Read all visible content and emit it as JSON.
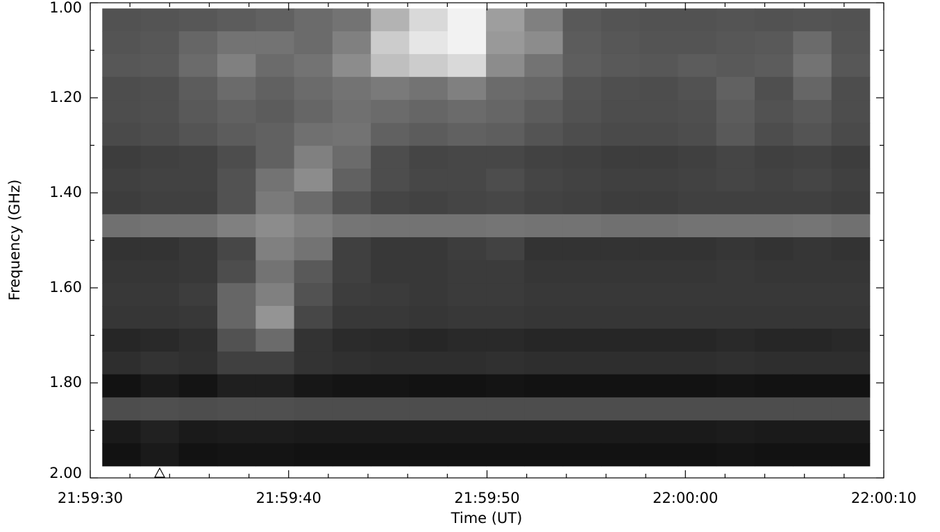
{
  "chart_data": {
    "type": "heatmap",
    "x_label": "Time (UT)",
    "y_label": "Frequency (GHz)",
    "colormap": "gray",
    "zlim": [
      0,
      1
    ],
    "xlim": [
      0,
      40
    ],
    "xticks": [
      {
        "value": 0,
        "label": "21:59:30"
      },
      {
        "value": 10,
        "label": "21:59:40"
      },
      {
        "value": 20,
        "label": "21:59:50"
      },
      {
        "value": 30,
        "label": "22:00:00"
      },
      {
        "value": 40,
        "label": "22:00:10"
      }
    ],
    "xminorticks": [
      2,
      4,
      6,
      8,
      12,
      14,
      16,
      18,
      22,
      24,
      26,
      28,
      32,
      34,
      36,
      38
    ],
    "ylim": [
      2,
      1
    ],
    "yticks": [
      {
        "value": 1,
        "label": "1.00"
      },
      {
        "value": 1.2,
        "label": "1.20"
      },
      {
        "value": 1.4,
        "label": "1.40"
      },
      {
        "value": 1.6,
        "label": "1.60"
      },
      {
        "value": 1.8,
        "label": "1.80"
      },
      {
        "value": 2,
        "label": "2.00"
      }
    ],
    "yminorticks": [
      1.1,
      1.3,
      1.5,
      1.7,
      1.9
    ],
    "marker_x": 3.5,
    "x": [
      1.57,
      3.5,
      5.44,
      7.37,
      9.31,
      11.24,
      13.18,
      15.11,
      17.05,
      18.98,
      20.92,
      22.85,
      24.79,
      26.72,
      28.66,
      30.59,
      32.53,
      34.46,
      36.4,
      38.33
    ],
    "y": [
      1.036,
      1.084,
      1.132,
      1.18,
      1.229,
      1.277,
      1.325,
      1.373,
      1.421,
      1.469,
      1.518,
      1.566,
      1.614,
      1.662,
      1.71,
      1.758,
      1.806,
      1.855,
      1.903,
      1.951
    ],
    "z": [
      [
        0.32,
        0.33,
        0.34,
        0.36,
        0.38,
        0.42,
        0.45,
        0.7,
        0.85,
        0.95,
        0.62,
        0.5,
        0.35,
        0.33,
        0.32,
        0.32,
        0.33,
        0.32,
        0.33,
        0.32
      ],
      [
        0.33,
        0.34,
        0.4,
        0.45,
        0.45,
        0.42,
        0.5,
        0.8,
        0.9,
        0.95,
        0.6,
        0.55,
        0.36,
        0.34,
        0.33,
        0.33,
        0.34,
        0.35,
        0.42,
        0.33
      ],
      [
        0.34,
        0.35,
        0.42,
        0.5,
        0.42,
        0.45,
        0.55,
        0.75,
        0.8,
        0.85,
        0.55,
        0.45,
        0.37,
        0.35,
        0.34,
        0.36,
        0.35,
        0.36,
        0.45,
        0.34
      ],
      [
        0.3,
        0.31,
        0.36,
        0.42,
        0.38,
        0.42,
        0.45,
        0.48,
        0.45,
        0.5,
        0.42,
        0.4,
        0.33,
        0.31,
        0.3,
        0.32,
        0.38,
        0.31,
        0.4,
        0.3
      ],
      [
        0.3,
        0.31,
        0.35,
        0.38,
        0.36,
        0.4,
        0.44,
        0.42,
        0.4,
        0.42,
        0.4,
        0.36,
        0.32,
        0.3,
        0.3,
        0.31,
        0.36,
        0.32,
        0.35,
        0.3
      ],
      [
        0.29,
        0.3,
        0.33,
        0.36,
        0.38,
        0.44,
        0.45,
        0.38,
        0.36,
        0.38,
        0.37,
        0.33,
        0.3,
        0.29,
        0.29,
        0.3,
        0.35,
        0.3,
        0.33,
        0.29
      ],
      [
        0.24,
        0.25,
        0.26,
        0.3,
        0.38,
        0.5,
        0.42,
        0.3,
        0.27,
        0.28,
        0.28,
        0.26,
        0.25,
        0.24,
        0.24,
        0.25,
        0.27,
        0.25,
        0.26,
        0.24
      ],
      [
        0.25,
        0.26,
        0.26,
        0.32,
        0.45,
        0.55,
        0.38,
        0.3,
        0.28,
        0.28,
        0.3,
        0.27,
        0.26,
        0.25,
        0.25,
        0.26,
        0.27,
        0.26,
        0.27,
        0.25
      ],
      [
        0.24,
        0.25,
        0.25,
        0.32,
        0.48,
        0.42,
        0.32,
        0.27,
        0.26,
        0.27,
        0.28,
        0.26,
        0.25,
        0.24,
        0.24,
        0.25,
        0.25,
        0.25,
        0.25,
        0.24
      ],
      [
        0.44,
        0.45,
        0.45,
        0.5,
        0.55,
        0.5,
        0.46,
        0.45,
        0.45,
        0.45,
        0.46,
        0.45,
        0.45,
        0.44,
        0.44,
        0.45,
        0.45,
        0.45,
        0.46,
        0.44
      ],
      [
        0.2,
        0.2,
        0.22,
        0.28,
        0.5,
        0.45,
        0.25,
        0.22,
        0.22,
        0.24,
        0.26,
        0.2,
        0.2,
        0.2,
        0.2,
        0.2,
        0.21,
        0.2,
        0.21,
        0.2
      ],
      [
        0.21,
        0.21,
        0.22,
        0.3,
        0.45,
        0.35,
        0.25,
        0.22,
        0.22,
        0.23,
        0.23,
        0.21,
        0.21,
        0.21,
        0.21,
        0.21,
        0.22,
        0.21,
        0.21,
        0.21
      ],
      [
        0.22,
        0.22,
        0.24,
        0.4,
        0.5,
        0.32,
        0.24,
        0.23,
        0.22,
        0.23,
        0.23,
        0.22,
        0.22,
        0.22,
        0.22,
        0.22,
        0.22,
        0.22,
        0.22,
        0.22
      ],
      [
        0.21,
        0.21,
        0.22,
        0.4,
        0.58,
        0.28,
        0.22,
        0.22,
        0.21,
        0.22,
        0.22,
        0.21,
        0.21,
        0.21,
        0.21,
        0.21,
        0.21,
        0.21,
        0.21,
        0.21
      ],
      [
        0.15,
        0.16,
        0.18,
        0.32,
        0.42,
        0.2,
        0.17,
        0.16,
        0.15,
        0.16,
        0.16,
        0.15,
        0.15,
        0.15,
        0.15,
        0.15,
        0.16,
        0.15,
        0.15,
        0.16
      ],
      [
        0.18,
        0.2,
        0.19,
        0.25,
        0.25,
        0.2,
        0.19,
        0.18,
        0.18,
        0.18,
        0.19,
        0.18,
        0.18,
        0.18,
        0.18,
        0.18,
        0.19,
        0.18,
        0.18,
        0.18
      ],
      [
        0.07,
        0.1,
        0.08,
        0.12,
        0.12,
        0.09,
        0.08,
        0.08,
        0.07,
        0.07,
        0.08,
        0.07,
        0.07,
        0.07,
        0.07,
        0.07,
        0.08,
        0.07,
        0.07,
        0.07
      ],
      [
        0.3,
        0.31,
        0.3,
        0.31,
        0.31,
        0.3,
        0.3,
        0.3,
        0.3,
        0.3,
        0.3,
        0.3,
        0.3,
        0.3,
        0.3,
        0.3,
        0.3,
        0.3,
        0.3,
        0.3
      ],
      [
        0.1,
        0.13,
        0.1,
        0.11,
        0.11,
        0.1,
        0.1,
        0.1,
        0.1,
        0.1,
        0.1,
        0.1,
        0.1,
        0.1,
        0.1,
        0.1,
        0.11,
        0.1,
        0.1,
        0.1
      ],
      [
        0.07,
        0.1,
        0.07,
        0.08,
        0.08,
        0.07,
        0.07,
        0.07,
        0.07,
        0.07,
        0.07,
        0.07,
        0.07,
        0.07,
        0.07,
        0.07,
        0.08,
        0.07,
        0.07,
        0.07
      ]
    ]
  }
}
